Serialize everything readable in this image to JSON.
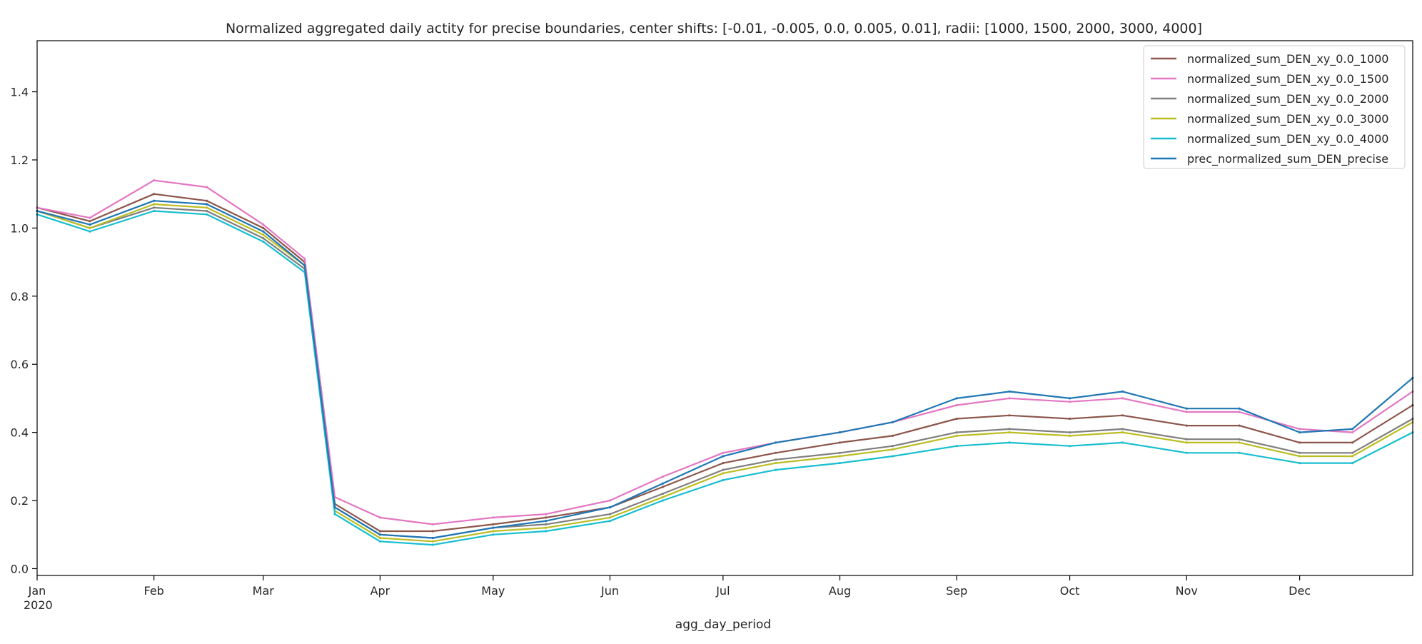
{
  "chart_data": {
    "type": "line",
    "title": "Normalized aggregated daily actity for precise boundaries, center shifts: [-0.01, -0.005, 0.0, 0.005, 0.01], radii: [1000, 1500, 2000, 3000, 4000]",
    "xlabel": "agg_day_period",
    "ylabel": "",
    "year_label": "2020",
    "x_range": [
      "2020-01-01",
      "2020-12-31"
    ],
    "ylim": [
      -0.02,
      1.55
    ],
    "x_ticks": [
      {
        "date": "2020-01-01",
        "label": "Jan"
      },
      {
        "date": "2020-02-01",
        "label": "Feb"
      },
      {
        "date": "2020-03-01",
        "label": "Mar"
      },
      {
        "date": "2020-04-01",
        "label": "Apr"
      },
      {
        "date": "2020-05-01",
        "label": "May"
      },
      {
        "date": "2020-06-01",
        "label": "Jun"
      },
      {
        "date": "2020-07-01",
        "label": "Jul"
      },
      {
        "date": "2020-08-01",
        "label": "Aug"
      },
      {
        "date": "2020-09-01",
        "label": "Sep"
      },
      {
        "date": "2020-10-01",
        "label": "Oct"
      },
      {
        "date": "2020-11-01",
        "label": "Nov"
      },
      {
        "date": "2020-12-01",
        "label": "Dec"
      }
    ],
    "y_ticks": [
      {
        "value": 0.0,
        "label": "0.0"
      },
      {
        "value": 0.2,
        "label": "0.2"
      },
      {
        "value": 0.4,
        "label": "0.4"
      },
      {
        "value": 0.6,
        "label": "0.6"
      },
      {
        "value": 0.8,
        "label": "0.8"
      },
      {
        "value": 1.0,
        "label": "1.0"
      },
      {
        "value": 1.2,
        "label": "1.2"
      },
      {
        "value": 1.4,
        "label": "1.4"
      }
    ],
    "grid": false,
    "legend_position": "top-right",
    "x": [
      "2020-01-01",
      "2020-01-15",
      "2020-02-01",
      "2020-02-15",
      "2020-03-01",
      "2020-03-12",
      "2020-03-20",
      "2020-04-01",
      "2020-04-15",
      "2020-05-01",
      "2020-05-15",
      "2020-06-01",
      "2020-06-15",
      "2020-07-01",
      "2020-07-15",
      "2020-08-01",
      "2020-08-15",
      "2020-09-01",
      "2020-09-15",
      "2020-10-01",
      "2020-10-15",
      "2020-11-01",
      "2020-11-15",
      "2020-12-01",
      "2020-12-15",
      "2020-12-31"
    ],
    "series": [
      {
        "name": "normalized_sum_DEN_xy_0.0_1000",
        "color": "#8c564b",
        "values": [
          1.06,
          1.02,
          1.1,
          1.08,
          1.0,
          0.9,
          0.19,
          0.11,
          0.11,
          0.13,
          0.15,
          0.18,
          0.24,
          0.31,
          0.34,
          0.37,
          0.39,
          0.44,
          0.45,
          0.44,
          0.45,
          0.42,
          0.42,
          0.37,
          0.37,
          0.48
        ]
      },
      {
        "name": "normalized_sum_DEN_xy_0.0_1500",
        "color": "#e377c2",
        "values": [
          1.06,
          1.03,
          1.14,
          1.12,
          1.01,
          0.91,
          0.21,
          0.15,
          0.13,
          0.15,
          0.16,
          0.2,
          0.27,
          0.34,
          0.37,
          0.4,
          0.43,
          0.48,
          0.5,
          0.49,
          0.5,
          0.46,
          0.46,
          0.41,
          0.4,
          0.52
        ]
      },
      {
        "name": "normalized_sum_DEN_xy_0.0_2000",
        "color": "#7f7f7f",
        "values": [
          1.05,
          1.0,
          1.06,
          1.05,
          0.97,
          0.88,
          0.18,
          0.1,
          0.09,
          0.12,
          0.13,
          0.16,
          0.22,
          0.29,
          0.32,
          0.34,
          0.36,
          0.4,
          0.41,
          0.4,
          0.41,
          0.38,
          0.38,
          0.34,
          0.34,
          0.44
        ]
      },
      {
        "name": "normalized_sum_DEN_xy_0.0_3000",
        "color": "#bcbd22",
        "values": [
          1.05,
          1.0,
          1.07,
          1.06,
          0.98,
          0.89,
          0.17,
          0.09,
          0.08,
          0.11,
          0.12,
          0.15,
          0.21,
          0.28,
          0.31,
          0.33,
          0.35,
          0.39,
          0.4,
          0.39,
          0.4,
          0.37,
          0.37,
          0.33,
          0.33,
          0.43
        ]
      },
      {
        "name": "normalized_sum_DEN_xy_0.0_4000",
        "color": "#17becf",
        "values": [
          1.04,
          0.99,
          1.05,
          1.04,
          0.96,
          0.87,
          0.16,
          0.08,
          0.07,
          0.1,
          0.11,
          0.14,
          0.2,
          0.26,
          0.29,
          0.31,
          0.33,
          0.36,
          0.37,
          0.36,
          0.37,
          0.34,
          0.34,
          0.31,
          0.31,
          0.4
        ]
      },
      {
        "name": "prec_normalized_sum_DEN_precise",
        "color": "#1f77b4",
        "values": [
          1.05,
          1.01,
          1.08,
          1.07,
          0.99,
          0.89,
          0.18,
          0.1,
          0.09,
          0.12,
          0.14,
          0.18,
          0.25,
          0.33,
          0.37,
          0.4,
          0.43,
          0.5,
          0.52,
          0.5,
          0.52,
          0.47,
          0.47,
          0.4,
          0.41,
          0.56
        ]
      }
    ]
  },
  "legend_swatch_width_note": ""
}
